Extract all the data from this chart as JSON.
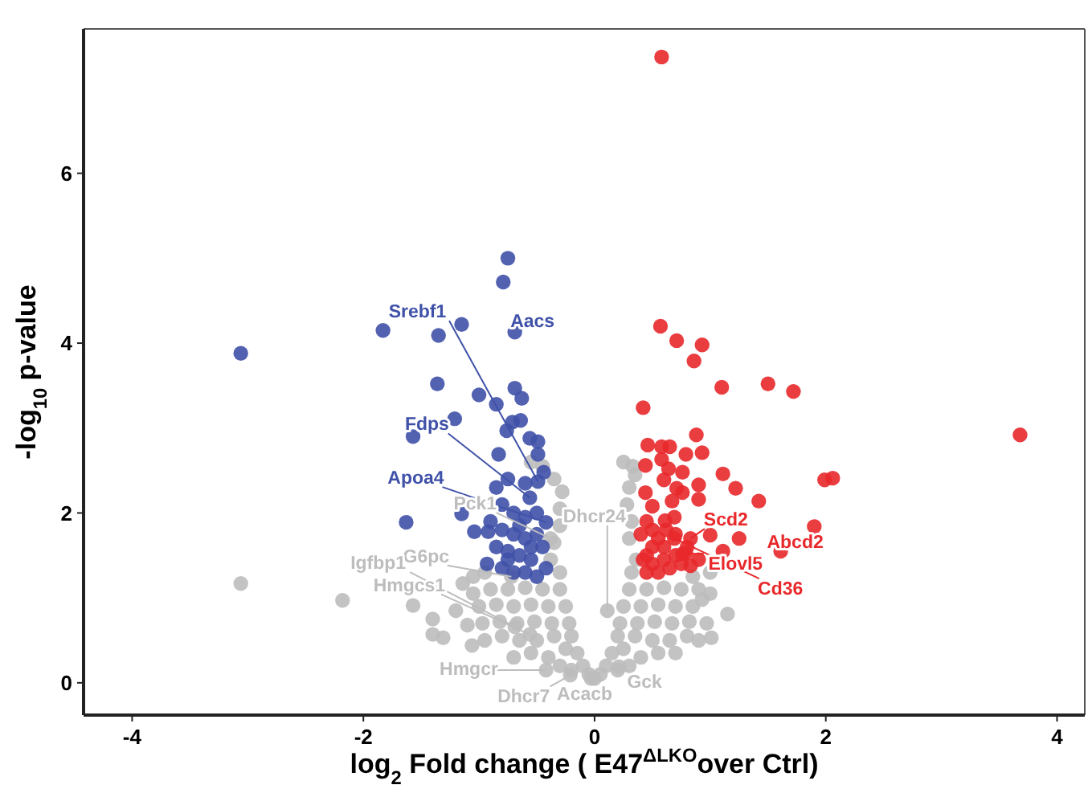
{
  "chart_data": {
    "type": "scatter",
    "xlabel": "log$_{2}$ Fold change ( E47$^{ΔLKO}$over Ctrl)",
    "ylabel": "-log$_{10}$ p-value",
    "xlim": [
      -4.42,
      4.24
    ],
    "ylim": [
      -0.38,
      7.7
    ],
    "xticks": [
      -4,
      -2,
      0,
      2,
      4
    ],
    "yticks": [
      0,
      2,
      4,
      6
    ],
    "grid": false,
    "marker": "circle",
    "series": [
      {
        "color": "#bdbdbd",
        "x": [
          0,
          -0.05,
          0.05,
          -0.1,
          0.1,
          -0.2,
          0.2,
          -0.3,
          0.3,
          -0.15,
          0.15,
          -0.4,
          0.4,
          -0.25,
          0.25,
          -0.55,
          0.55,
          -0.7,
          0.7,
          -0.2,
          -0.35,
          -0.5,
          -0.65,
          -0.8,
          -0.95,
          0.2,
          0.35,
          0.5,
          0.65,
          0.8,
          0.9,
          -0.22,
          -0.37,
          -0.52,
          -0.67,
          -0.82,
          -0.97,
          -1.1,
          0.22,
          0.37,
          0.52,
          0.67,
          0.82,
          0.97,
          -0.25,
          -0.4,
          -0.55,
          -0.7,
          -0.85,
          -1.0,
          -1.2,
          0.25,
          0.4,
          0.55,
          0.7,
          0.85,
          -0.3,
          -0.45,
          -0.6,
          -0.75,
          -0.9,
          -1.05,
          0.3,
          0.45,
          0.6,
          0.75,
          0.9,
          1.0,
          -0.3,
          -0.38,
          -0.95,
          -1.05,
          0.32,
          0.36,
          0.85,
          1.0,
          -0.35,
          -0.3,
          -0.3,
          -0.28,
          -0.35,
          -0.45,
          -0.55,
          0.3,
          0.32,
          0.28,
          0.3,
          0.35,
          0.25,
          0.33,
          -3.06,
          -2.18,
          -1.57,
          -1.4,
          -1.31,
          -1.06,
          -1.14,
          1.15,
          1.01,
          0.93,
          -1.4,
          -0.38,
          -0.72,
          -0.69,
          -0.56,
          -0.42,
          -0.21,
          -0.03,
          0.21,
          0.11
        ],
        "values": [
          0.05,
          0.1,
          0.1,
          0.2,
          0.2,
          0.15,
          0.15,
          0.2,
          0.2,
          0.35,
          0.35,
          0.3,
          0.3,
          0.4,
          0.4,
          0.35,
          0.35,
          0.3,
          0.35,
          0.55,
          0.55,
          0.5,
          0.5,
          0.55,
          0.5,
          0.55,
          0.55,
          0.5,
          0.5,
          0.55,
          0.5,
          0.7,
          0.7,
          0.72,
          0.7,
          0.72,
          0.7,
          0.68,
          0.7,
          0.7,
          0.72,
          0.7,
          0.72,
          0.7,
          0.9,
          0.9,
          0.92,
          0.9,
          0.92,
          0.9,
          0.85,
          0.9,
          0.9,
          0.92,
          0.9,
          0.9,
          1.1,
          1.1,
          1.12,
          1.1,
          1.1,
          1.05,
          1.1,
          1.1,
          1.12,
          1.1,
          1.1,
          1.05,
          1.3,
          1.45,
          1.3,
          1.25,
          1.3,
          1.45,
          1.25,
          1.3,
          1.65,
          1.85,
          2.05,
          2.25,
          2.4,
          2.55,
          2.6,
          1.7,
          1.9,
          2.1,
          2.3,
          2.45,
          2.6,
          2.55,
          1.17,
          0.97,
          0.91,
          0.57,
          0.53,
          0.44,
          1.17,
          0.81,
          0.53,
          0.98,
          0.75,
          1.7,
          1.25,
          0.66,
          0.57,
          0.15,
          0.09,
          0.05,
          0.19,
          0.85
        ]
      },
      {
        "color": "#3f51a8",
        "x": [
          -0.75,
          -0.79,
          -3.06,
          -1.83,
          -1.35,
          -1.15,
          -0.69,
          -1.36,
          -1.0,
          -0.85,
          -0.69,
          -0.63,
          -1.21,
          -1.57,
          -0.76,
          -0.71,
          -0.64,
          -0.56,
          -0.49,
          -0.49,
          -0.83,
          -0.44,
          -1.63,
          -1.15,
          -1.04,
          -0.93,
          -0.92,
          -0.85,
          -0.75,
          -0.6,
          -0.8,
          -0.7,
          -0.6,
          -0.5,
          -0.9,
          -0.8,
          -0.7,
          -0.6,
          -0.5,
          -0.45,
          -0.85,
          -0.75,
          -0.65,
          -0.55,
          -0.8,
          -0.7,
          -0.6,
          -0.5,
          -0.42,
          -0.75,
          -0.65,
          -0.55,
          -0.49,
          -0.56,
          -0.42
        ],
        "values": [
          5.0,
          4.72,
          3.88,
          4.15,
          4.09,
          4.22,
          4.13,
          3.52,
          3.39,
          3.28,
          3.47,
          3.35,
          3.11,
          2.9,
          2.97,
          3.07,
          3.09,
          2.88,
          2.84,
          2.69,
          2.69,
          2.48,
          1.89,
          1.99,
          1.78,
          1.4,
          1.78,
          2.3,
          2.4,
          2.35,
          2.1,
          2.0,
          1.95,
          2.0,
          1.9,
          1.8,
          1.75,
          1.7,
          1.75,
          1.6,
          1.6,
          1.55,
          1.5,
          1.45,
          1.35,
          1.3,
          1.3,
          1.25,
          1.35,
          1.45,
          1.85,
          1.6,
          2.37,
          2.18,
          1.89
        ]
      },
      {
        "color": "#e8282b",
        "x": [
          0.58,
          0.57,
          0.71,
          0.93,
          0.86,
          1.1,
          1.5,
          1.72,
          3.68,
          0.42,
          0.88,
          0.46,
          0.58,
          0.65,
          0.79,
          0.93,
          0.58,
          0.44,
          0.64,
          0.76,
          1.11,
          0.6,
          1.99,
          2.06,
          0.9,
          0.71,
          1.22,
          0.76,
          0.9,
          1.42,
          0.67,
          0.44,
          0.5,
          0.69,
          0.61,
          1.9,
          1.25,
          1.61,
          1.11,
          0.79,
          0.83,
          1.0,
          0.45,
          0.5,
          0.55,
          0.6,
          0.45,
          0.5,
          0.6,
          0.7,
          0.65,
          0.55,
          0.45,
          0.75,
          0.8,
          0.7,
          0.5,
          0.62,
          0.9,
          0.4,
          0.42,
          0.83,
          0.69,
          0.76
        ],
        "values": [
          7.37,
          4.2,
          4.03,
          3.98,
          3.79,
          3.48,
          3.52,
          3.43,
          2.92,
          3.24,
          2.92,
          2.8,
          2.78,
          2.78,
          2.69,
          2.71,
          2.63,
          2.56,
          2.52,
          2.48,
          2.46,
          2.39,
          2.39,
          2.41,
          2.33,
          2.29,
          2.29,
          2.24,
          2.16,
          2.14,
          2.14,
          2.24,
          2.08,
          1.95,
          1.91,
          1.84,
          1.7,
          1.55,
          1.55,
          1.53,
          1.38,
          1.74,
          1.9,
          1.8,
          1.7,
          1.6,
          1.5,
          1.4,
          1.45,
          1.5,
          1.35,
          1.3,
          1.3,
          1.4,
          1.6,
          1.75,
          1.6,
          1.8,
          1.45,
          1.75,
          1.45,
          1.7,
          1.7,
          1.52
        ]
      }
    ],
    "annotations": [
      {
        "text": "Srebf1",
        "x": -0.49,
        "y": 2.37
      },
      {
        "text": "Aacs",
        "x": -0.69,
        "y": 4.13
      },
      {
        "text": "Fdps",
        "x": -0.56,
        "y": 2.18
      },
      {
        "text": "Apoa4",
        "x": -0.42,
        "y": 1.89
      },
      {
        "text": "Pck1",
        "x": -0.38,
        "y": 1.7
      },
      {
        "text": "G6pc",
        "x": -0.72,
        "y": 1.25
      },
      {
        "text": "Igfbp1",
        "x": -0.69,
        "y": 0.66
      },
      {
        "text": "Hmgcs1",
        "x": -0.56,
        "y": 0.57
      },
      {
        "text": "Hmgcr",
        "x": -0.42,
        "y": 0.15
      },
      {
        "text": "Dhcr7",
        "x": -0.21,
        "y": 0.09
      },
      {
        "text": "Acacb",
        "x": -0.03,
        "y": 0.05
      },
      {
        "text": "Gck",
        "x": 0.21,
        "y": 0.19
      },
      {
        "text": "Dhcr24",
        "x": 0.11,
        "y": 0.85
      },
      {
        "text": "Scd2",
        "x": 0.83,
        "y": 1.7
      },
      {
        "text": "Cd36",
        "x": 0.69,
        "y": 1.7
      },
      {
        "text": "Elovl5",
        "x": 0.76,
        "y": 1.52
      },
      {
        "text": "Abcd2",
        "x": 1.61,
        "y": 1.55
      }
    ]
  }
}
